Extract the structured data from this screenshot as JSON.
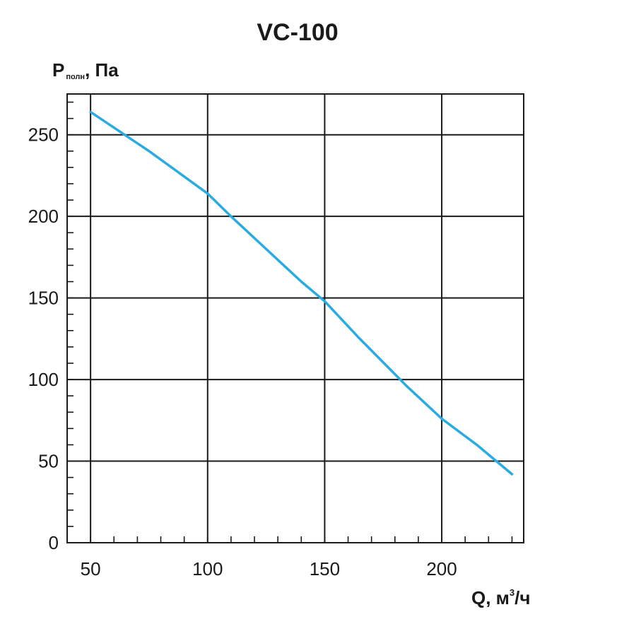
{
  "chart_data": {
    "type": "line",
    "title": "VC-100",
    "ylabel": {
      "main": "P",
      "sub": "полн",
      "rest": ", Па"
    },
    "xlabel": {
      "main": "Q, м",
      "sup": "3",
      "rest": "/ч"
    },
    "xlim": [
      40,
      235
    ],
    "ylim": [
      0,
      275
    ],
    "x_ticks": [
      50,
      100,
      150,
      200
    ],
    "y_ticks": [
      0,
      50,
      100,
      150,
      200,
      250
    ],
    "grid": true,
    "series": [
      {
        "color": "#29abe2",
        "x": [
          50,
          75,
          100,
          110,
          125,
          140,
          150,
          165,
          185,
          200,
          215,
          230
        ],
        "y": [
          264,
          240,
          214,
          200,
          180,
          160,
          148,
          125,
          96,
          76,
          60,
          42
        ]
      }
    ]
  }
}
